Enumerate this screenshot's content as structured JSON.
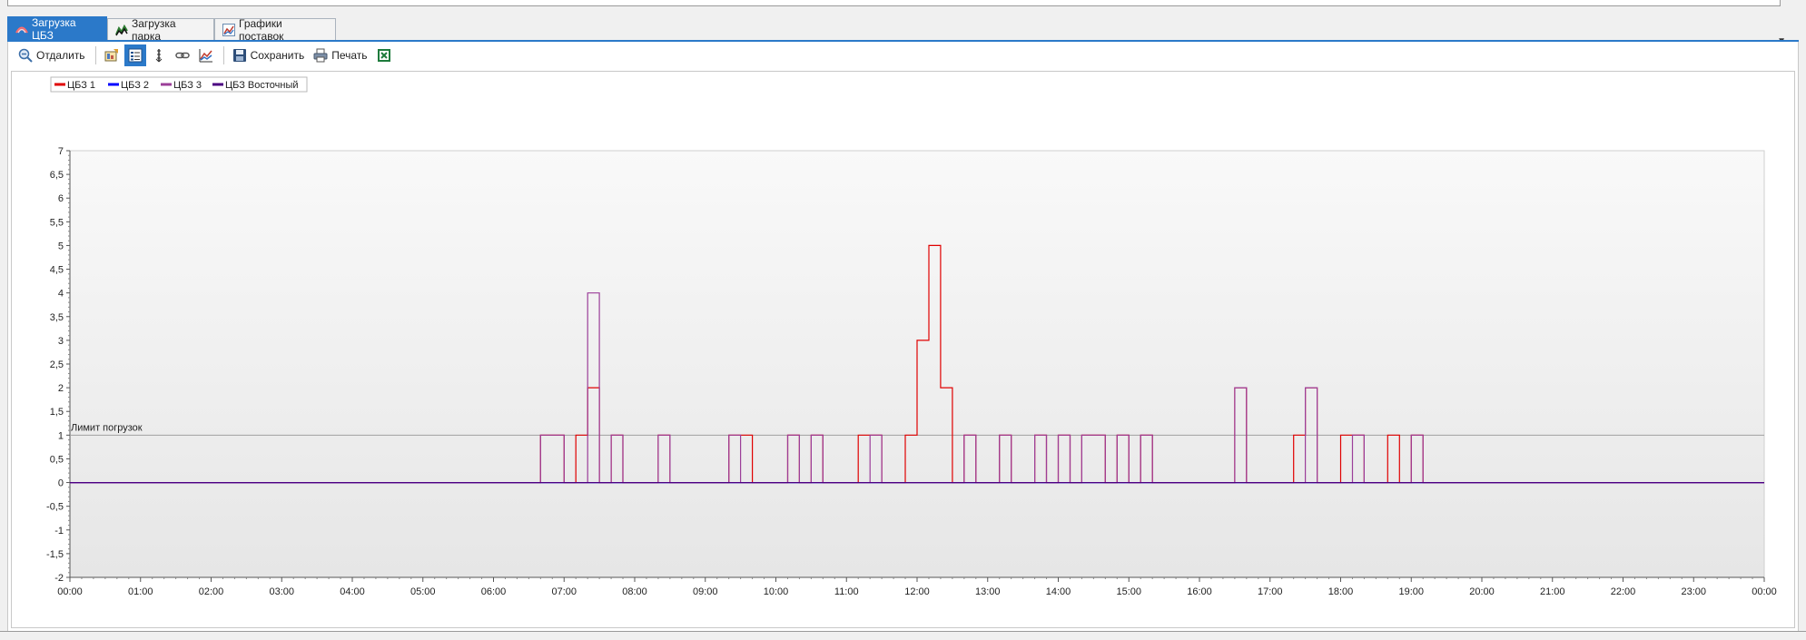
{
  "tabs": [
    {
      "label": "Загрузка ЦБЗ",
      "icon": "load-chart-icon",
      "active": true
    },
    {
      "label": "Загрузка парка",
      "icon": "tank-chart-icon",
      "active": false
    },
    {
      "label": "Графики поставок",
      "icon": "delivery-chart-icon",
      "active": false
    }
  ],
  "toolbar": {
    "zoom_out_label": "Отдалить",
    "save_label": "Сохранить",
    "print_label": "Печать"
  },
  "colors": {
    "accent": "#2b79c9",
    "series": [
      "#e00000",
      "#0000ff",
      "#9b3e99",
      "#4b0082"
    ],
    "limit_line": "#a0a0a0"
  },
  "chart_data": {
    "type": "line",
    "step": true,
    "title": "",
    "xlabel": "",
    "ylabel": "",
    "x_ticks": [
      "00:00",
      "01:00",
      "02:00",
      "03:00",
      "04:00",
      "05:00",
      "06:00",
      "07:00",
      "08:00",
      "09:00",
      "10:00",
      "11:00",
      "12:00",
      "13:00",
      "14:00",
      "15:00",
      "16:00",
      "17:00",
      "18:00",
      "19:00",
      "20:00",
      "21:00",
      "22:00",
      "23:00",
      "00:00"
    ],
    "xlim_hours": [
      0,
      24
    ],
    "ylim": [
      -2,
      7
    ],
    "y_ticks": [
      "-2",
      "-1,5",
      "-1",
      "-0,5",
      "0",
      "0,5",
      "1",
      "1,5",
      "2",
      "2,5",
      "3",
      "3,5",
      "4",
      "4,5",
      "5",
      "5,5",
      "6",
      "6,5",
      "7"
    ],
    "grid": false,
    "legend_position": "top-left",
    "limit_line": {
      "label": "Лимит погрузок",
      "value": 1
    },
    "series": [
      {
        "name": "ЦБЗ 1",
        "color": "#e00000",
        "intervals": [
          {
            "start": "06:40",
            "end": "07:00",
            "value": 1
          },
          {
            "start": "07:00",
            "end": "07:10",
            "value": 0
          },
          {
            "start": "07:10",
            "end": "07:20",
            "value": 1
          },
          {
            "start": "07:20",
            "end": "07:30",
            "value": 2
          },
          {
            "start": "07:40",
            "end": "07:50",
            "value": 1
          },
          {
            "start": "08:20",
            "end": "08:30",
            "value": 1
          },
          {
            "start": "09:20",
            "end": "09:40",
            "value": 1
          },
          {
            "start": "10:10",
            "end": "10:20",
            "value": 1
          },
          {
            "start": "10:30",
            "end": "10:40",
            "value": 1
          },
          {
            "start": "11:10",
            "end": "11:30",
            "value": 1
          },
          {
            "start": "11:50",
            "end": "12:00",
            "value": 1
          },
          {
            "start": "12:00",
            "end": "12:10",
            "value": 3
          },
          {
            "start": "12:10",
            "end": "12:20",
            "value": 5
          },
          {
            "start": "12:20",
            "end": "12:30",
            "value": 2
          },
          {
            "start": "12:40",
            "end": "12:50",
            "value": 1
          },
          {
            "start": "13:10",
            "end": "13:20",
            "value": 1
          },
          {
            "start": "13:40",
            "end": "13:50",
            "value": 1
          },
          {
            "start": "14:00",
            "end": "14:10",
            "value": 1
          },
          {
            "start": "14:20",
            "end": "14:40",
            "value": 1
          },
          {
            "start": "14:50",
            "end": "15:00",
            "value": 1
          },
          {
            "start": "15:10",
            "end": "15:20",
            "value": 1
          },
          {
            "start": "16:30",
            "end": "16:40",
            "value": 2
          },
          {
            "start": "17:20",
            "end": "17:30",
            "value": 1
          },
          {
            "start": "17:30",
            "end": "17:40",
            "value": 2
          },
          {
            "start": "18:00",
            "end": "18:10",
            "value": 1
          },
          {
            "start": "18:10",
            "end": "18:20",
            "value": 1
          },
          {
            "start": "18:40",
            "end": "18:50",
            "value": 1
          },
          {
            "start": "19:00",
            "end": "19:10",
            "value": 1
          }
        ]
      },
      {
        "name": "ЦБЗ 2",
        "color": "#0000ff",
        "intervals": []
      },
      {
        "name": "ЦБЗ 3",
        "color": "#9b3e99",
        "intervals": [
          {
            "start": "06:40",
            "end": "06:50",
            "value": 1
          },
          {
            "start": "06:50",
            "end": "07:00",
            "value": 1
          },
          {
            "start": "07:20",
            "end": "07:30",
            "value": 4
          },
          {
            "start": "07:40",
            "end": "07:50",
            "value": 1
          },
          {
            "start": "08:20",
            "end": "08:30",
            "value": 1
          },
          {
            "start": "09:20",
            "end": "09:30",
            "value": 1
          },
          {
            "start": "10:10",
            "end": "10:20",
            "value": 1
          },
          {
            "start": "10:30",
            "end": "10:40",
            "value": 1
          },
          {
            "start": "11:20",
            "end": "11:30",
            "value": 1
          },
          {
            "start": "12:40",
            "end": "12:50",
            "value": 1
          },
          {
            "start": "13:10",
            "end": "13:20",
            "value": 1
          },
          {
            "start": "13:40",
            "end": "13:50",
            "value": 1
          },
          {
            "start": "14:00",
            "end": "14:10",
            "value": 1
          },
          {
            "start": "14:20",
            "end": "14:30",
            "value": 1
          },
          {
            "start": "14:30",
            "end": "14:40",
            "value": 1
          },
          {
            "start": "14:50",
            "end": "15:00",
            "value": 1
          },
          {
            "start": "15:10",
            "end": "15:20",
            "value": 1
          },
          {
            "start": "16:30",
            "end": "16:40",
            "value": 2
          },
          {
            "start": "17:30",
            "end": "17:40",
            "value": 2
          },
          {
            "start": "18:10",
            "end": "18:20",
            "value": 1
          },
          {
            "start": "19:00",
            "end": "19:10",
            "value": 1
          }
        ]
      },
      {
        "name": "ЦБЗ Восточный",
        "color": "#4b0082",
        "intervals": []
      }
    ]
  }
}
